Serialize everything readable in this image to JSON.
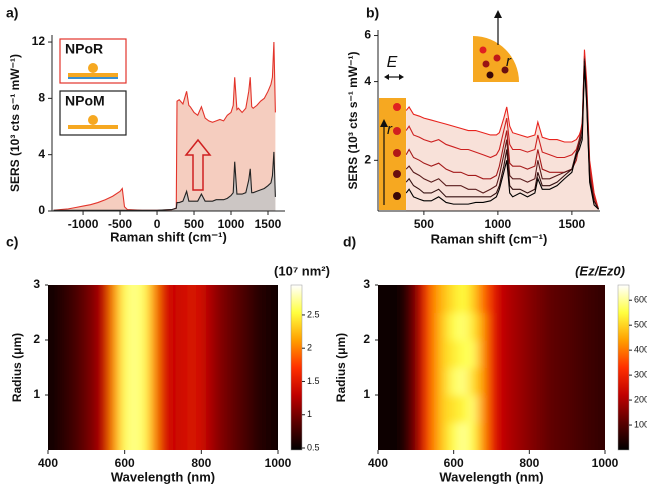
{
  "chart_data": [
    {
      "type": "line",
      "panel_label": "a)",
      "xlabel": "Raman shift (cm⁻¹)",
      "ylabel": "SERS (10³ cts s⁻¹ mW⁻¹)",
      "xlim": [
        -1420,
        1730
      ],
      "xticks": [
        -1000,
        -500,
        0,
        500,
        1000,
        1500
      ],
      "ylim": [
        0,
        12.5
      ],
      "yticks": [
        0,
        4,
        8,
        12
      ],
      "x": [
        -1400,
        -1300,
        -1200,
        -1100,
        -1000,
        -900,
        -800,
        -700,
        -600,
        -500,
        -470,
        -440,
        -400,
        -200,
        0,
        200,
        260,
        270,
        300,
        350,
        400,
        430,
        450,
        500,
        550,
        600,
        650,
        700,
        750,
        800,
        850,
        900,
        950,
        1000,
        1030,
        1050,
        1080,
        1100,
        1150,
        1200,
        1240,
        1260,
        1280,
        1300,
        1350,
        1400,
        1450,
        1500,
        1540,
        1560,
        1580,
        1600
      ],
      "series": [
        {
          "name": "NPoR",
          "color": "#e3342b",
          "fill": "#f3c4b4",
          "values": [
            0.05,
            0.1,
            0.15,
            0.25,
            0.35,
            0.45,
            0.6,
            0.8,
            1.05,
            1.4,
            1.6,
            0.3,
            0.1,
            0.05,
            0.05,
            0.1,
            0.2,
            7.8,
            7.9,
            7.6,
            8.5,
            7.5,
            7.4,
            7.0,
            6.8,
            7.4,
            6.6,
            6.4,
            6.3,
            6.4,
            6.5,
            6.4,
            6.8,
            7.0,
            7.5,
            9.5,
            7.2,
            7.3,
            7.0,
            7.3,
            8.5,
            9.5,
            7.4,
            7.3,
            7.5,
            7.8,
            8.0,
            8.5,
            9.0,
            9.5,
            12.0,
            7.0
          ]
        },
        {
          "name": "NPoM",
          "color": "#222222",
          "fill": "#c4c4c4",
          "values": [
            0.05,
            0.05,
            0.05,
            0.05,
            0.05,
            0.05,
            0.05,
            0.05,
            0.05,
            0.05,
            0.05,
            0.05,
            0.05,
            0.05,
            0.05,
            0.1,
            0.2,
            0.6,
            0.6,
            0.7,
            1.4,
            0.7,
            0.7,
            0.7,
            0.7,
            1.2,
            0.7,
            0.7,
            0.7,
            0.8,
            0.8,
            0.8,
            0.9,
            1.1,
            1.3,
            3.5,
            1.2,
            1.2,
            1.2,
            1.3,
            2.2,
            3.0,
            1.3,
            1.3,
            1.4,
            1.5,
            1.6,
            1.8,
            2.0,
            2.5,
            4.2,
            1.0
          ]
        }
      ]
    },
    {
      "type": "line",
      "panel_label": "b)",
      "xlabel": "Raman shift (cm⁻¹)",
      "ylabel": "SERS (10³ cts s⁻¹ mW⁻¹)",
      "xlim": [
        190,
        1690
      ],
      "xticks": [
        500,
        1000,
        1500
      ],
      "ylim": [
        1.28,
        6.3
      ],
      "yticks": [
        2,
        4,
        6
      ],
      "log_y": true,
      "annotations": [
        {
          "text": "E"
        },
        {
          "text": "r"
        },
        {
          "text": "r"
        }
      ],
      "x": [
        380,
        400,
        430,
        470,
        500,
        550,
        600,
        650,
        700,
        750,
        800,
        850,
        900,
        950,
        990,
        1010,
        1040,
        1060,
        1080,
        1100,
        1150,
        1200,
        1250,
        1270,
        1300,
        1350,
        1400,
        1450,
        1500,
        1530,
        1550,
        1570,
        1585,
        1600,
        1620,
        1650,
        1680
      ],
      "series": [
        {
          "color": "#e8231d",
          "fill": "#f7dcd2",
          "values": [
            3.1,
            3.2,
            3.0,
            2.95,
            2.9,
            2.85,
            2.8,
            2.75,
            2.7,
            2.65,
            2.6,
            2.6,
            2.55,
            2.5,
            2.5,
            2.55,
            2.9,
            3.2,
            2.7,
            2.55,
            2.5,
            2.45,
            2.5,
            2.8,
            2.45,
            2.4,
            2.4,
            2.35,
            2.35,
            2.4,
            2.5,
            2.7,
            5.3,
            4.0,
            2.0,
            1.5,
            1.3
          ]
        },
        {
          "color": "#cc1f1f",
          "values": [
            2.6,
            2.7,
            2.5,
            2.45,
            2.4,
            2.35,
            2.4,
            2.3,
            2.25,
            2.2,
            2.2,
            2.15,
            2.1,
            2.05,
            2.1,
            2.2,
            2.6,
            2.9,
            2.3,
            2.2,
            2.2,
            2.15,
            2.2,
            2.5,
            2.15,
            2.1,
            2.05,
            2.05,
            2.1,
            2.2,
            2.4,
            2.8,
            5.0,
            3.8,
            1.9,
            1.45,
            1.3
          ]
        },
        {
          "color": "#a31a1a",
          "values": [
            2.1,
            2.2,
            2.05,
            2.0,
            1.95,
            1.9,
            1.95,
            1.85,
            1.8,
            1.8,
            1.75,
            1.75,
            1.7,
            1.7,
            1.75,
            1.9,
            2.3,
            2.6,
            1.95,
            1.9,
            1.9,
            1.85,
            1.9,
            2.2,
            1.85,
            1.8,
            1.8,
            1.8,
            1.85,
            2.0,
            2.3,
            2.7,
            4.8,
            3.6,
            1.8,
            1.4,
            1.3
          ]
        },
        {
          "color": "#5a1c1c",
          "values": [
            1.85,
            1.9,
            1.8,
            1.75,
            1.7,
            1.65,
            1.7,
            1.6,
            1.6,
            1.6,
            1.55,
            1.55,
            1.5,
            1.55,
            1.6,
            1.75,
            2.1,
            2.4,
            1.75,
            1.7,
            1.7,
            1.65,
            1.7,
            2.0,
            1.7,
            1.7,
            1.75,
            1.8,
            1.85,
            2.1,
            2.4,
            2.6,
            4.9,
            3.5,
            1.75,
            1.4,
            1.3
          ]
        },
        {
          "color": "#331010",
          "values": [
            1.65,
            1.7,
            1.6,
            1.55,
            1.5,
            1.5,
            1.55,
            1.45,
            1.45,
            1.45,
            1.45,
            1.45,
            1.45,
            1.45,
            1.5,
            1.6,
            1.9,
            2.2,
            1.6,
            1.55,
            1.55,
            1.5,
            1.55,
            1.8,
            1.6,
            1.6,
            1.65,
            1.75,
            1.85,
            2.15,
            2.3,
            2.5,
            4.8,
            3.4,
            1.7,
            1.4,
            1.3
          ]
        },
        {
          "color": "#000000",
          "values": [
            1.5,
            1.55,
            1.45,
            1.42,
            1.4,
            1.4,
            1.45,
            1.38,
            1.36,
            1.36,
            1.36,
            1.38,
            1.38,
            1.4,
            1.45,
            1.55,
            1.8,
            2.0,
            1.5,
            1.45,
            1.5,
            1.45,
            1.5,
            1.7,
            1.55,
            1.55,
            1.6,
            1.7,
            1.8,
            2.1,
            2.2,
            2.4,
            4.6,
            3.3,
            1.65,
            1.35,
            1.3
          ]
        }
      ]
    },
    {
      "type": "heatmap",
      "panel_label": "c)",
      "xlabel": "Wavelength (nm)",
      "ylabel": "Radius (μm)",
      "colorbar_label": "(10⁷ nm²)",
      "xlim": [
        400,
        1000
      ],
      "xticks": [
        400,
        600,
        800,
        1000
      ],
      "ylim": [
        0,
        3
      ],
      "yticks": [
        1,
        2,
        3
      ],
      "clim": [
        0.47,
        2.95
      ],
      "cticks": [
        0.5,
        1,
        1.5,
        2,
        2.5
      ],
      "colormap": [
        "#000000",
        "#5a0000",
        "#c00000",
        "#ff3000",
        "#ffa000",
        "#ffff40",
        "#ffffff"
      ],
      "x": [
        400,
        425,
        450,
        475,
        500,
        525,
        550,
        575,
        600,
        625,
        650,
        675,
        700,
        725,
        750,
        775,
        800,
        825,
        850,
        875,
        900,
        925,
        950,
        975,
        1000
      ],
      "values": [
        0.55,
        0.6,
        0.7,
        0.8,
        0.95,
        1.1,
        1.4,
        2.1,
        2.6,
        2.7,
        2.6,
        2.1,
        1.5,
        1.35,
        1.4,
        1.45,
        1.4,
        1.2,
        1.05,
        0.95,
        0.85,
        0.75,
        0.65,
        0.6,
        0.55
      ]
    },
    {
      "type": "heatmap",
      "panel_label": "d)",
      "xlabel": "Wavelength (nm)",
      "ylabel": "Radius (μm)",
      "colorbar_label": "(Ez/Ez0)",
      "xlim": [
        400,
        1000
      ],
      "xticks": [
        400,
        600,
        800,
        1000
      ],
      "ylim": [
        0,
        3
      ],
      "yticks": [
        1,
        2,
        3
      ],
      "clim": [
        0,
        661
      ],
      "cticks": [
        100,
        200,
        300,
        400,
        500,
        600
      ],
      "colormap": [
        "#000000",
        "#5a0000",
        "#c00000",
        "#ff3000",
        "#ffa000",
        "#ffff40",
        "#ffffff"
      ],
      "x": [
        400,
        425,
        450,
        475,
        500,
        525,
        550,
        575,
        600,
        625,
        650,
        675,
        700,
        725,
        750,
        775,
        800,
        825,
        850,
        875,
        900,
        925,
        950,
        975,
        1000
      ],
      "y": [
        0.25,
        0.75,
        1.25,
        1.75,
        2.25,
        2.75
      ],
      "z": [
        [
          10,
          10,
          15,
          40,
          150,
          300,
          420,
          500,
          560,
          600,
          560,
          440,
          300,
          230,
          200,
          180,
          160,
          140,
          120,
          110,
          100,
          90,
          80,
          70,
          60
        ],
        [
          10,
          10,
          15,
          40,
          150,
          300,
          420,
          500,
          520,
          540,
          580,
          440,
          300,
          230,
          200,
          180,
          160,
          140,
          120,
          110,
          100,
          90,
          80,
          70,
          60
        ],
        [
          10,
          10,
          15,
          40,
          150,
          300,
          420,
          500,
          570,
          590,
          520,
          440,
          300,
          230,
          200,
          180,
          160,
          140,
          120,
          110,
          100,
          90,
          80,
          70,
          60
        ],
        [
          10,
          10,
          15,
          40,
          150,
          300,
          420,
          500,
          530,
          560,
          570,
          440,
          300,
          230,
          200,
          180,
          160,
          140,
          120,
          110,
          100,
          90,
          80,
          70,
          60
        ],
        [
          10,
          10,
          15,
          40,
          150,
          300,
          420,
          500,
          560,
          580,
          530,
          440,
          300,
          230,
          200,
          180,
          160,
          140,
          120,
          110,
          100,
          90,
          80,
          70,
          60
        ],
        [
          10,
          10,
          15,
          40,
          150,
          300,
          420,
          480,
          520,
          550,
          500,
          400,
          300,
          230,
          200,
          180,
          160,
          140,
          120,
          110,
          100,
          90,
          80,
          70,
          60
        ]
      ]
    }
  ]
}
